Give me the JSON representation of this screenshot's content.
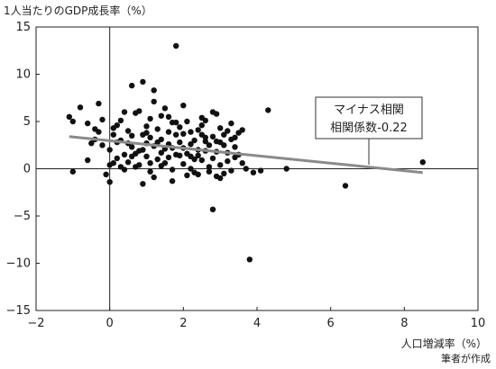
{
  "chart_data": {
    "type": "scatter",
    "ylabel": "1人当たりのGDP成長率（%）",
    "xlabel": "人口増減率（%）",
    "source_note": "筆者が作成",
    "annotation": {
      "line1": "マイナス相関",
      "line2": "相関係数-0.22"
    },
    "xlim": [
      -2,
      10
    ],
    "ylim": [
      -15,
      15
    ],
    "xticks": [
      -2,
      0,
      2,
      4,
      6,
      8,
      10
    ],
    "yticks": [
      -15,
      -10,
      -5,
      0,
      5,
      10,
      15
    ],
    "xtick_labels": [
      "−2",
      "0",
      "2",
      "4",
      "6",
      "8",
      "10"
    ],
    "ytick_labels": [
      "−15",
      "−10",
      "−5",
      "0",
      "5",
      "10",
      "15"
    ],
    "trend": {
      "x": [
        -1.1,
        8.5
      ],
      "y": [
        3.4,
        -0.4
      ]
    },
    "points": [
      [
        1.8,
        13.0
      ],
      [
        4.3,
        6.2
      ],
      [
        8.5,
        0.7
      ],
      [
        6.4,
        -1.8
      ],
      [
        3.8,
        -9.6
      ],
      [
        2.8,
        -4.3
      ],
      [
        4.8,
        0.0
      ],
      [
        4.1,
        -0.2
      ],
      [
        3.9,
        -0.4
      ],
      [
        3.7,
        0.0
      ],
      [
        -1.1,
        5.5
      ],
      [
        -1.0,
        5.0
      ],
      [
        -0.8,
        6.5
      ],
      [
        -0.6,
        4.8
      ],
      [
        -0.4,
        4.2
      ],
      [
        -0.3,
        6.9
      ],
      [
        -0.2,
        5.2
      ],
      [
        -1.0,
        -0.3
      ],
      [
        -0.6,
        0.9
      ],
      [
        -0.2,
        2.5
      ],
      [
        0.0,
        -1.4
      ],
      [
        -0.1,
        -0.6
      ],
      [
        0.1,
        0.6
      ],
      [
        0.0,
        2.0
      ],
      [
        0.1,
        3.6
      ],
      [
        0.2,
        4.6
      ],
      [
        0.3,
        3.0
      ],
      [
        0.4,
        1.5
      ],
      [
        0.5,
        0.7
      ],
      [
        0.6,
        2.3
      ],
      [
        0.6,
        8.8
      ],
      [
        0.7,
        5.9
      ],
      [
        0.8,
        6.1
      ],
      [
        0.9,
        9.2
      ],
      [
        1.0,
        4.5
      ],
      [
        1.1,
        3.3
      ],
      [
        1.2,
        8.3
      ],
      [
        1.3,
        2.8
      ],
      [
        1.4,
        5.6
      ],
      [
        1.5,
        6.4
      ],
      [
        1.6,
        3.9
      ],
      [
        1.7,
        2.2
      ],
      [
        1.8,
        4.9
      ],
      [
        1.9,
        1.4
      ],
      [
        2.0,
        3.7
      ],
      [
        2.1,
        5.0
      ],
      [
        2.2,
        2.6
      ],
      [
        2.3,
        1.0
      ],
      [
        2.4,
        4.1
      ],
      [
        2.5,
        5.4
      ],
      [
        2.6,
        2.9
      ],
      [
        2.7,
        0.2
      ],
      [
        2.8,
        3.4
      ],
      [
        2.9,
        1.8
      ],
      [
        3.0,
        4.3
      ],
      [
        3.1,
        2.5
      ],
      [
        3.2,
        0.8
      ],
      [
        3.3,
        3.1
      ],
      [
        3.4,
        1.2
      ],
      [
        3.5,
        3.8
      ],
      [
        0.2,
        1.1
      ],
      [
        0.3,
        0.2
      ],
      [
        0.4,
        -0.1
      ],
      [
        0.5,
        2.7
      ],
      [
        0.7,
        1.6
      ],
      [
        0.8,
        0.4
      ],
      [
        0.9,
        2.0
      ],
      [
        1.0,
        1.3
      ],
      [
        1.1,
        0.6
      ],
      [
        1.2,
        2.4
      ],
      [
        1.3,
        1.0
      ],
      [
        1.4,
        0.3
      ],
      [
        1.5,
        2.1
      ],
      [
        1.6,
        1.2
      ],
      [
        1.7,
        -0.1
      ],
      [
        1.9,
        2.8
      ],
      [
        2.0,
        0.5
      ],
      [
        2.1,
        1.6
      ],
      [
        2.2,
        0.0
      ],
      [
        2.3,
        3.0
      ],
      [
        2.4,
        1.4
      ],
      [
        2.5,
        0.9
      ],
      [
        2.6,
        1.9
      ],
      [
        2.7,
        -0.3
      ],
      [
        2.8,
        1.1
      ],
      [
        2.9,
        -0.8
      ],
      [
        3.0,
        0.4
      ],
      [
        3.1,
        -0.5
      ],
      [
        3.2,
        1.7
      ],
      [
        3.3,
        -0.2
      ],
      [
        0.9,
        -1.6
      ],
      [
        1.2,
        -0.9
      ],
      [
        1.7,
        -1.3
      ],
      [
        2.4,
        -0.6
      ],
      [
        3.0,
        -1.0
      ],
      [
        0.6,
        3.5
      ],
      [
        1.0,
        3.8
      ],
      [
        1.4,
        3.1
      ],
      [
        1.8,
        3.6
      ],
      [
        2.2,
        3.9
      ],
      [
        2.6,
        3.3
      ],
      [
        3.0,
        2.8
      ],
      [
        3.4,
        2.3
      ],
      [
        1.3,
        4.2
      ],
      [
        1.9,
        4.4
      ],
      [
        2.5,
        4.6
      ],
      [
        0.3,
        5.1
      ],
      [
        1.1,
        5.3
      ],
      [
        2.9,
        5.8
      ],
      [
        3.3,
        4.8
      ],
      [
        0.1,
        4.3
      ],
      [
        -0.4,
        3.1
      ],
      [
        -0.5,
        2.7
      ],
      [
        -0.3,
        3.9
      ],
      [
        0.8,
        1.9
      ],
      [
        1.6,
        2.6
      ],
      [
        2.0,
        2.2
      ],
      [
        2.7,
        2.5
      ],
      [
        3.5,
        1.5
      ],
      [
        3.6,
        0.6
      ],
      [
        0.5,
        4.0
      ],
      [
        1.5,
        0.6
      ],
      [
        2.3,
        -0.4
      ],
      [
        3.1,
        3.6
      ],
      [
        0.7,
        0.2
      ],
      [
        1.1,
        -0.3
      ],
      [
        2.1,
        -0.7
      ],
      [
        2.8,
        6.0
      ],
      [
        1.7,
        4.9
      ],
      [
        0.4,
        6.0
      ],
      [
        1.2,
        7.1
      ],
      [
        2.0,
        6.7
      ],
      [
        2.6,
        5.1
      ],
      [
        3.2,
        4.0
      ],
      [
        0.0,
        0.4
      ],
      [
        0.2,
        2.8
      ],
      [
        1.0,
        2.7
      ],
      [
        1.8,
        1.5
      ],
      [
        2.4,
        2.0
      ],
      [
        3.4,
        3.3
      ],
      [
        3.6,
        4.1
      ],
      [
        1.4,
        1.7
      ],
      [
        0.6,
        1.3
      ],
      [
        2.2,
        1.3
      ],
      [
        2.9,
        2.9
      ],
      [
        1.6,
        5.5
      ],
      [
        0.9,
        3.6
      ],
      [
        2.5,
        3.6
      ]
    ]
  }
}
